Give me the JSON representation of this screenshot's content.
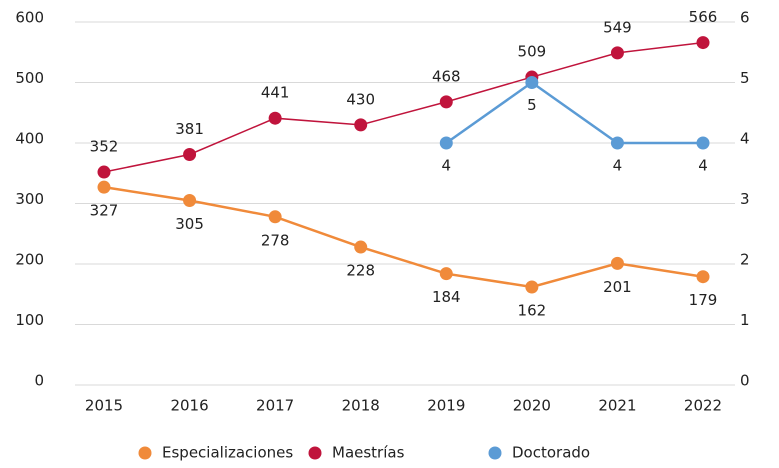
{
  "chart_data": {
    "type": "line",
    "categories": [
      "2015",
      "2016",
      "2017",
      "2018",
      "2019",
      "2020",
      "2021",
      "2022"
    ],
    "series": [
      {
        "name": "Especializaciones",
        "color": "#f08a3a",
        "values": [
          327,
          305,
          278,
          228,
          184,
          162,
          201,
          179
        ]
      },
      {
        "name": "Maestrías",
        "color": "#c0143c",
        "values": [
          352,
          381,
          441,
          430,
          468,
          509,
          549,
          566
        ]
      },
      {
        "name": "Doctorado",
        "color": "#5b9bd5",
        "axis": "y2",
        "values": [
          null,
          null,
          null,
          null,
          4,
          5,
          4,
          4
        ]
      }
    ],
    "ylim": [
      0,
      600
    ],
    "yticks": [
      0,
      100,
      200,
      300,
      400,
      500,
      600
    ],
    "y2lim": [
      0,
      6
    ],
    "y2ticks": [
      0,
      1,
      2,
      3,
      4,
      5,
      6
    ],
    "grid": true,
    "legend": "bottom"
  }
}
